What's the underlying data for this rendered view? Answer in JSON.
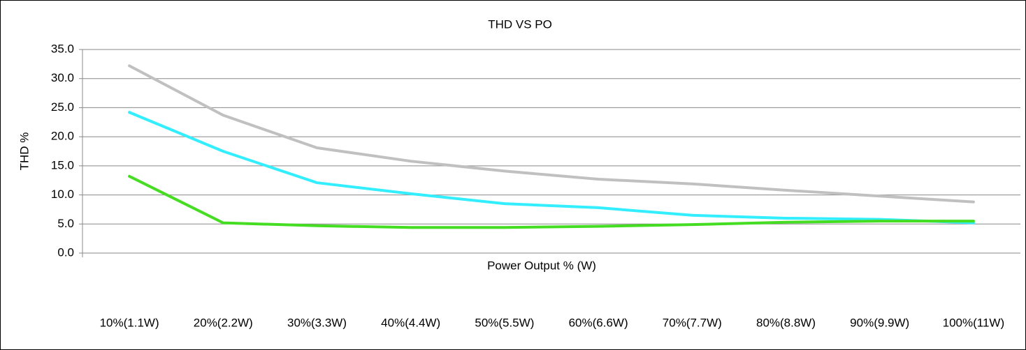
{
  "chart_data": {
    "type": "line",
    "title": "THD VS PO",
    "y_label": "THD %",
    "x_label": "Power Output  % (W)",
    "categories": [
      "10%(1.1W)",
      "20%(2.2W)",
      "30%(3.3W)",
      "40%(4.4W)",
      "50%(5.5W)",
      "60%(6.6W)",
      "70%(7.7W)",
      "80%(8.8W)",
      "90%(9.9W)",
      "100%(11W)"
    ],
    "series": [
      {
        "color": "#c0c0c0",
        "values": [
          32.2,
          23.7,
          18.1,
          15.8,
          14.1,
          12.7,
          11.9,
          10.8,
          9.8,
          8.8
        ]
      },
      {
        "color": "#33eeff",
        "values": [
          24.2,
          17.5,
          12.1,
          10.2,
          8.5,
          7.8,
          6.5,
          6.0,
          5.8,
          5.2
        ]
      },
      {
        "color": "#44dd22",
        "values": [
          13.2,
          5.2,
          4.7,
          4.4,
          4.4,
          4.6,
          4.9,
          5.3,
          5.5,
          5.5
        ]
      }
    ],
    "ylim": [
      0,
      35
    ],
    "yticks": [
      {
        "value": 0,
        "label": "0.0"
      },
      {
        "value": 5,
        "label": "5.0"
      },
      {
        "value": 10,
        "label": "10.0"
      },
      {
        "value": 15,
        "label": "15.0"
      },
      {
        "value": 20,
        "label": "20.0"
      },
      {
        "value": 25,
        "label": "25.0"
      },
      {
        "value": 30,
        "label": "30.0"
      },
      {
        "value": 35,
        "label": "35.0"
      }
    ],
    "grid": true
  }
}
